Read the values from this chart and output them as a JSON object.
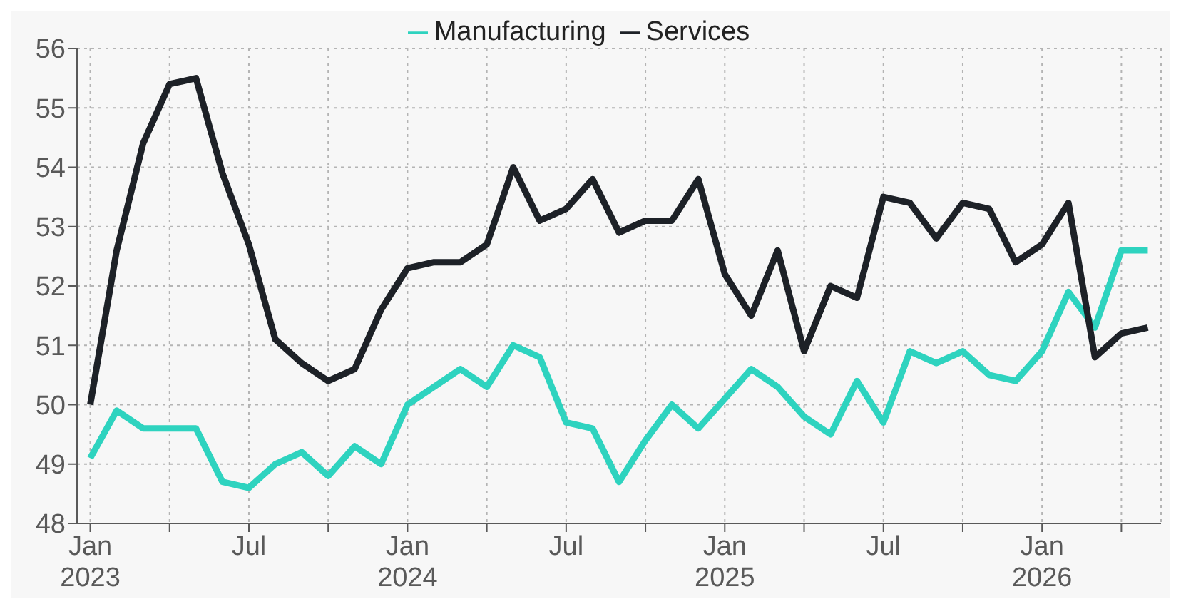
{
  "chart_data": {
    "type": "line",
    "x": [
      "2023-01",
      "2023-02",
      "2023-03",
      "2023-04",
      "2023-05",
      "2023-06",
      "2023-07",
      "2023-08",
      "2023-09",
      "2023-10",
      "2023-11",
      "2023-12",
      "2024-01",
      "2024-02",
      "2024-03",
      "2024-04",
      "2024-05",
      "2024-06",
      "2024-07",
      "2024-08",
      "2024-09",
      "2024-10",
      "2024-11",
      "2024-12",
      "2025-01",
      "2025-02",
      "2025-03",
      "2025-04",
      "2025-05",
      "2025-06",
      "2025-07",
      "2025-08",
      "2025-09",
      "2025-10",
      "2025-11",
      "2025-12",
      "2026-01",
      "2026-02",
      "2026-03",
      "2026-04",
      "2026-05"
    ],
    "series": [
      {
        "name": "Manufacturing",
        "color": "#2ed3bf",
        "values": [
          49.1,
          49.9,
          49.6,
          49.6,
          49.6,
          48.7,
          48.6,
          49.0,
          49.2,
          48.8,
          49.3,
          49.0,
          50.0,
          50.3,
          50.6,
          50.3,
          51.0,
          50.8,
          49.7,
          49.6,
          48.7,
          49.4,
          50.0,
          49.6,
          50.1,
          50.6,
          50.3,
          49.8,
          49.5,
          50.4,
          49.7,
          50.9,
          50.7,
          50.9,
          50.5,
          50.4,
          50.9,
          51.9,
          51.3,
          52.6,
          52.6
        ]
      },
      {
        "name": "Services",
        "color": "#1d2127",
        "values": [
          50.0,
          52.6,
          54.4,
          55.4,
          55.5,
          53.9,
          52.7,
          51.1,
          50.7,
          50.4,
          50.6,
          51.6,
          52.3,
          52.4,
          52.4,
          52.7,
          54.0,
          53.1,
          53.3,
          53.8,
          52.9,
          53.1,
          53.1,
          53.8,
          52.2,
          51.5,
          52.6,
          50.9,
          52.0,
          51.8,
          53.5,
          53.4,
          52.8,
          53.4,
          53.3,
          52.4,
          52.7,
          53.4,
          50.8,
          51.2,
          51.3
        ]
      }
    ],
    "xlim": [
      "2022-12-16",
      "2026-05-16"
    ],
    "xticks": [
      {
        "value": "2023-01",
        "label": "Jan 2023"
      },
      {
        "value": "2023-04",
        "label": null
      },
      {
        "value": "2023-07",
        "label": "Jul"
      },
      {
        "value": "2023-10",
        "label": null
      },
      {
        "value": "2024-01",
        "label": "Jan 2024"
      },
      {
        "value": "2024-04",
        "label": null
      },
      {
        "value": "2024-07",
        "label": "Jul"
      },
      {
        "value": "2024-10",
        "label": null
      },
      {
        "value": "2025-01",
        "label": "Jan 2025"
      },
      {
        "value": "2025-04",
        "label": null
      },
      {
        "value": "2025-07",
        "label": "Jul"
      },
      {
        "value": "2025-10",
        "label": null
      },
      {
        "value": "2026-01",
        "label": "Jan 2026"
      },
      {
        "value": "2026-04",
        "label": null
      }
    ],
    "ylim": [
      48,
      56
    ],
    "yticks": [
      48,
      49,
      50,
      51,
      52,
      53,
      54,
      55,
      56
    ],
    "grid": true,
    "legend": "top",
    "marker": "none",
    "line_style": "solid"
  }
}
